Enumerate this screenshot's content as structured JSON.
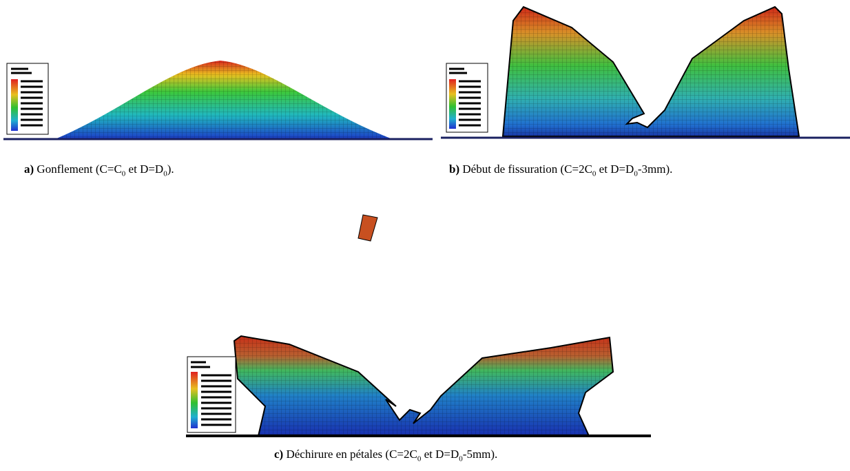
{
  "captions": [
    {
      "label": "a)",
      "parts": [
        {
          "text": "Gonflement (C=C"
        },
        {
          "text": "0",
          "sub": true
        },
        {
          "text": " et D=D"
        },
        {
          "text": "0",
          "sub": true
        },
        {
          "text": ")."
        }
      ]
    },
    {
      "label": "b)",
      "parts": [
        {
          "text": "Début de fissuration (C=2C"
        },
        {
          "text": "0",
          "sub": true
        },
        {
          "text": " et D=D"
        },
        {
          "text": "0",
          "sub": true
        },
        {
          "text": "-3mm)."
        }
      ]
    },
    {
      "label": "c)",
      "parts": [
        {
          "text": "Déchirure en pétales (C=2C"
        },
        {
          "text": "0",
          "sub": true
        },
        {
          "text": " et D=D"
        },
        {
          "text": "0",
          "sub": true
        },
        {
          "text": "-5mm)."
        }
      ]
    }
  ]
}
